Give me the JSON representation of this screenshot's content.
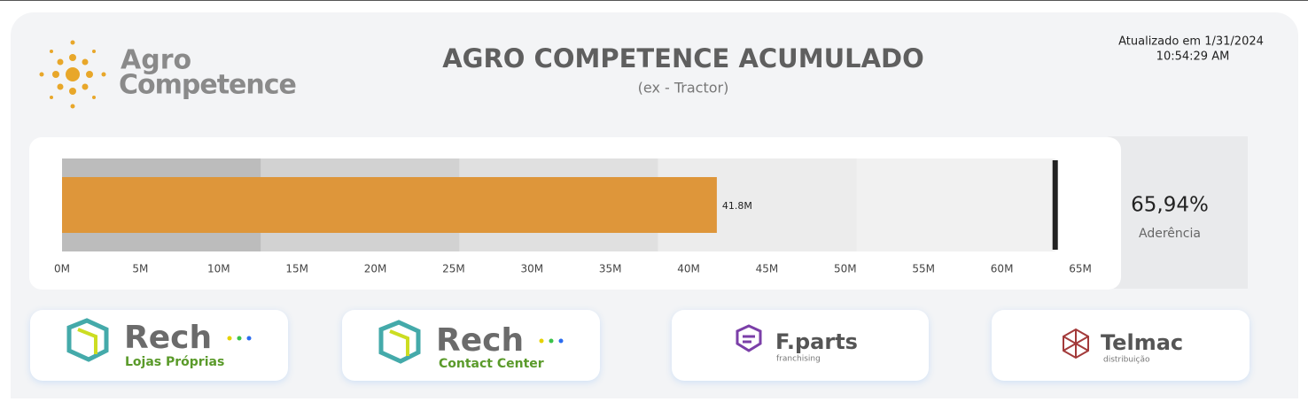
{
  "header": {
    "title": "AGRO COMPETENCE ACUMULADO",
    "subtitle": "(ex - Tractor)",
    "updated": "Atualizado em 1/31/2024",
    "time": "10:54:29 AM",
    "logo_line1": "Agro",
    "logo_line2": "Competence"
  },
  "chart_data": {
    "type": "bullet",
    "categories": [
      "Agro Competence"
    ],
    "values": [
      41.8
    ],
    "value_labels": [
      "41.8M"
    ],
    "color": "#de963a",
    "target": 63.4,
    "target_color": "#222222",
    "ranges": [
      12.68,
      25.36,
      38.04,
      50.72,
      63.4
    ],
    "range_colors": [
      "#bcbcbc",
      "#d2d2d2",
      "#e0e0e0",
      "#ececec",
      "#f1f1f1"
    ],
    "xlim": [
      0,
      65
    ],
    "xticks": [
      {
        "value": 0,
        "label": "0M"
      },
      {
        "value": 5,
        "label": "5M"
      },
      {
        "value": 10,
        "label": "10M"
      },
      {
        "value": 15,
        "label": "15M"
      },
      {
        "value": 20,
        "label": "20M"
      },
      {
        "value": 25,
        "label": "25M"
      },
      {
        "value": 30,
        "label": "30M"
      },
      {
        "value": 35,
        "label": "35M"
      },
      {
        "value": 40,
        "label": "40M"
      },
      {
        "value": 45,
        "label": "45M"
      },
      {
        "value": 50,
        "label": "50M"
      },
      {
        "value": 55,
        "label": "55M"
      },
      {
        "value": 60,
        "label": "60M"
      },
      {
        "value": 65,
        "label": "65M"
      }
    ]
  },
  "kpi": {
    "value": "65,94%",
    "label": "Aderência"
  },
  "cards": [
    {
      "name": "Rech",
      "sub": "Lojas Próprias"
    },
    {
      "name": "Rech",
      "sub": "Contact Center"
    },
    {
      "name": "F.parts",
      "sub": "franchising"
    },
    {
      "name": "Telmac",
      "sub": "distribuição"
    }
  ]
}
